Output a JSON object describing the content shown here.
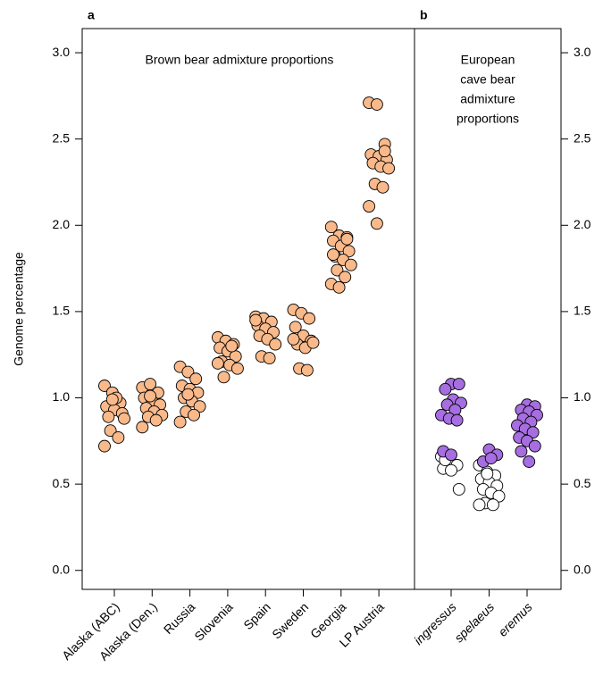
{
  "chart_data": [
    {
      "type": "strip",
      "panel_label": "a",
      "annotation": [
        "Brown bear admixture proportions"
      ],
      "y_label": "Genome percentage",
      "y_axis_side": "left",
      "category_style": "normal",
      "categories": [
        "Alaska (ABC)",
        "Alaska (Den.)",
        "Russia",
        "Slovenia",
        "Spain",
        "Sweden",
        "Georgia",
        "LP Austria"
      ],
      "series": [
        {
          "color": "#f9b98a",
          "values": [
            [
              1.07,
              1.03,
              0.97,
              0.95,
              0.93,
              0.91,
              0.89,
              1.0,
              0.88,
              0.81,
              0.77,
              0.72,
              0.99
            ],
            [
              1.06,
              1.08,
              1.03,
              1.0,
              0.98,
              0.96,
              0.94,
              0.92,
              0.9,
              0.89,
              0.87,
              0.83,
              1.01
            ],
            [
              1.18,
              1.15,
              1.11,
              1.07,
              1.05,
              1.03,
              1.0,
              0.98,
              0.95,
              0.92,
              0.9,
              0.86,
              1.02
            ],
            [
              1.35,
              1.33,
              1.31,
              1.29,
              1.27,
              1.24,
              1.21,
              1.19,
              1.17,
              1.12,
              1.3,
              1.2
            ],
            [
              1.47,
              1.46,
              1.44,
              1.42,
              1.4,
              1.38,
              1.36,
              1.34,
              1.31,
              1.24,
              1.23,
              1.45
            ],
            [
              1.51,
              1.49,
              1.46,
              1.41,
              1.36,
              1.33,
              1.31,
              1.29,
              1.32,
              1.17,
              1.16,
              1.34
            ],
            [
              1.99,
              1.94,
              1.93,
              1.91,
              1.88,
              1.85,
              1.82,
              1.8,
              1.77,
              1.74,
              1.7,
              1.66,
              1.64,
              1.92,
              1.83
            ],
            [
              2.71,
              2.7,
              2.47,
              2.41,
              2.4,
              2.38,
              2.36,
              2.34,
              2.33,
              2.24,
              2.22,
              2.11,
              2.01,
              2.43
            ]
          ]
        }
      ],
      "ylim": [
        -0.11,
        3.14
      ],
      "yticks": [
        {
          "value": 0,
          "label": "0.0"
        },
        {
          "value": 0.5,
          "label": "0.5"
        },
        {
          "value": 1,
          "label": "1.0"
        },
        {
          "value": 1.5,
          "label": "1.5"
        },
        {
          "value": 2,
          "label": "2.0"
        },
        {
          "value": 2.5,
          "label": "2.5"
        },
        {
          "value": 3,
          "label": "3.0"
        }
      ]
    },
    {
      "type": "strip",
      "panel_label": "b",
      "annotation": [
        "European",
        "cave bear",
        "admixture",
        "proportions"
      ],
      "y_axis_side": "right",
      "category_style": "italic",
      "categories": [
        "ingressus",
        "spelaeus",
        "eremus"
      ],
      "series": [
        {
          "color": "#ffffff",
          "values": [
            [
              0.66,
              0.63,
              0.61,
              0.59,
              0.58,
              0.47,
              0.64
            ],
            [
              0.61,
              0.57,
              0.55,
              0.53,
              0.51,
              0.49,
              0.47,
              0.45,
              0.43,
              0.39,
              0.38,
              0.38,
              0.56
            ],
            []
          ]
        },
        {
          "color": "#a66ee0",
          "values": [
            [
              1.08,
              1.08,
              1.05,
              0.99,
              0.97,
              0.96,
              0.93,
              0.9,
              0.88,
              0.87,
              0.69,
              0.67
            ],
            [
              0.7,
              0.67,
              0.63,
              0.65
            ],
            [
              0.96,
              0.95,
              0.93,
              0.92,
              0.9,
              0.88,
              0.86,
              0.84,
              0.82,
              0.8,
              0.77,
              0.75,
              0.72,
              0.69,
              0.63
            ]
          ]
        }
      ],
      "ylim": [
        -0.11,
        3.14
      ],
      "yticks": [
        {
          "value": 0,
          "label": "0.0"
        },
        {
          "value": 0.5,
          "label": "0.5"
        },
        {
          "value": 1,
          "label": "1.0"
        },
        {
          "value": 1.5,
          "label": "1.5"
        },
        {
          "value": 2,
          "label": "2.0"
        },
        {
          "value": 2.5,
          "label": "2.5"
        },
        {
          "value": 3,
          "label": "3.0"
        }
      ]
    }
  ]
}
